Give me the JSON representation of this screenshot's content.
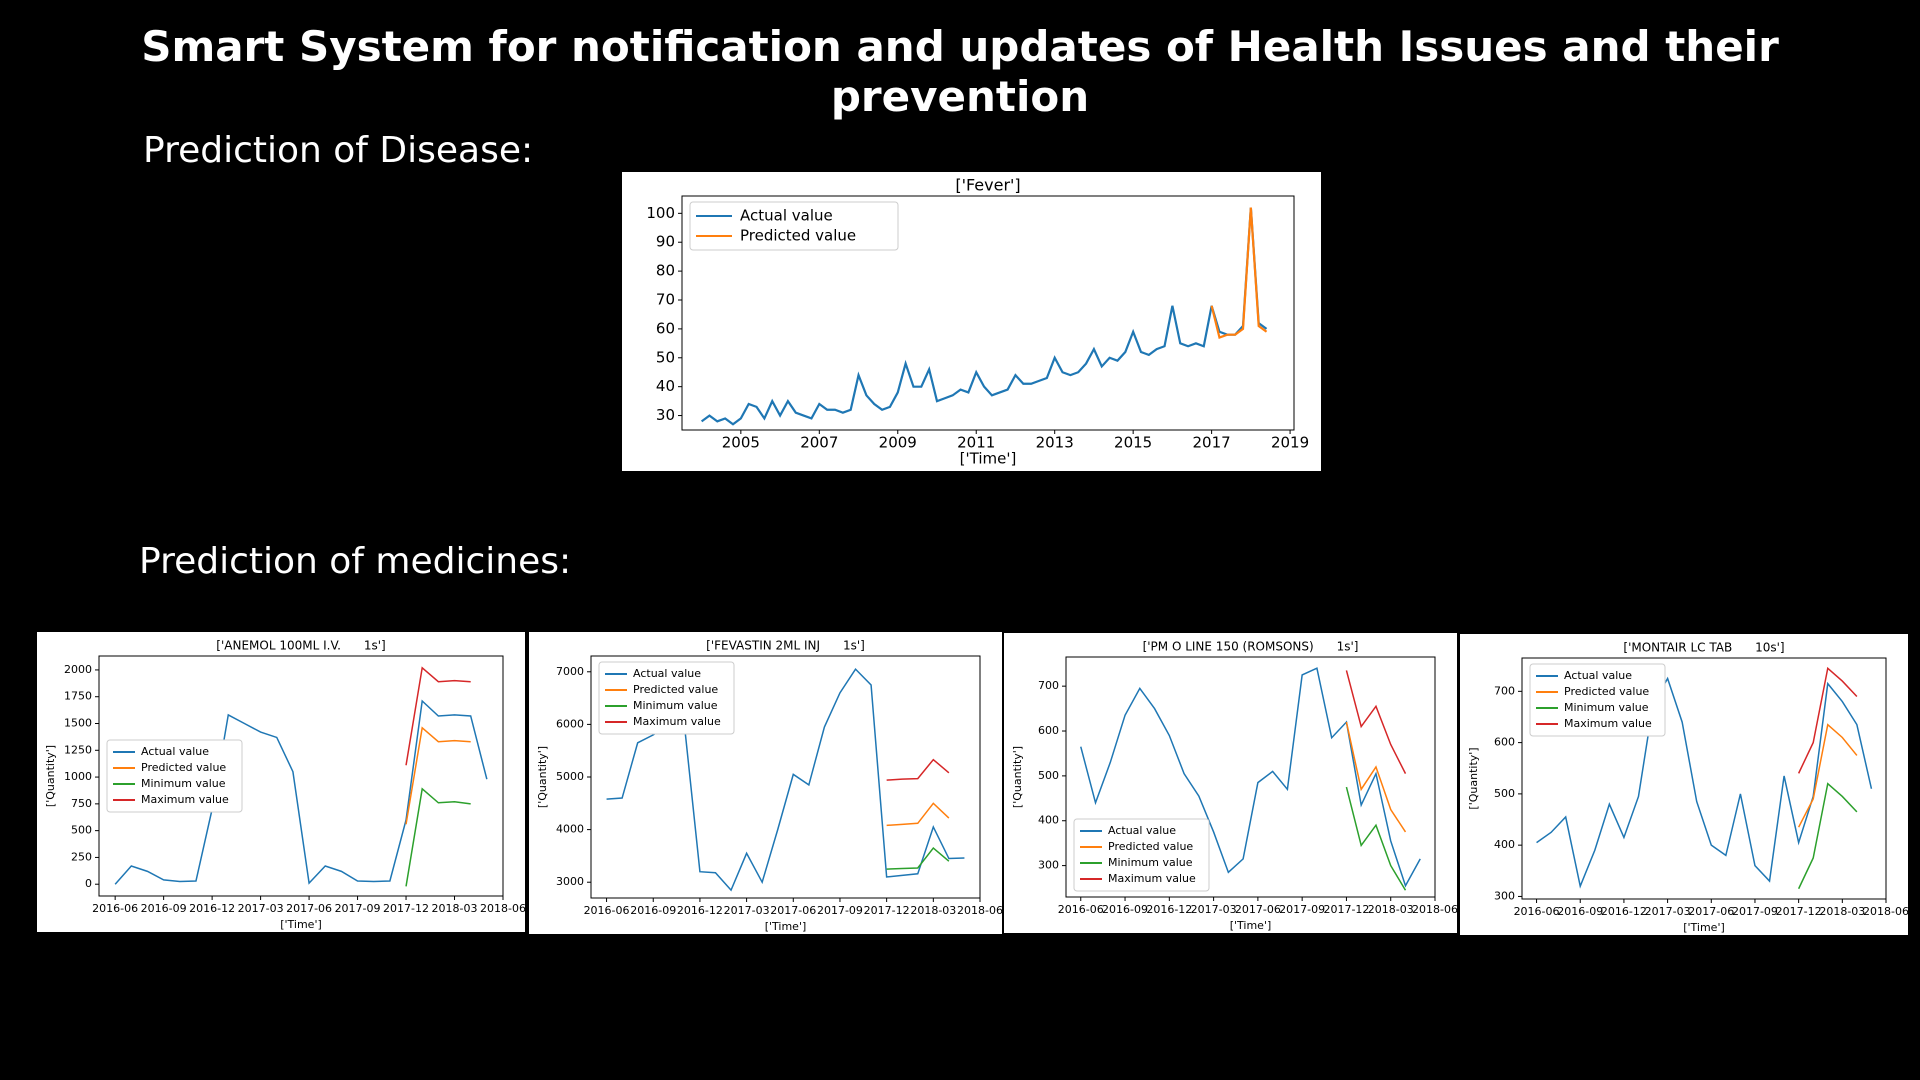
{
  "header": {
    "title": "Smart System for notification and updates of Health Issues and their prevention"
  },
  "sections": [
    {
      "label": "Prediction of Disease:"
    },
    {
      "label": "Prediction of medicines:"
    }
  ],
  "chart_data": [
    {
      "type": "line",
      "title": "['Fever']",
      "x_label": "['Time']",
      "legend": "upper left",
      "x": [
        2004.0,
        2004.2,
        2004.4,
        2004.6,
        2004.8,
        2005.0,
        2005.2,
        2005.4,
        2005.6,
        2005.8,
        2006.0,
        2006.2,
        2006.4,
        2006.6,
        2006.8,
        2007.0,
        2007.2,
        2007.4,
        2007.6,
        2007.8,
        2008.0,
        2008.2,
        2008.4,
        2008.6,
        2008.8,
        2009.0,
        2009.2,
        2009.4,
        2009.6,
        2009.8,
        2010.0,
        2010.2,
        2010.4,
        2010.6,
        2010.8,
        2011.0,
        2011.2,
        2011.4,
        2011.6,
        2011.8,
        2012.0,
        2012.2,
        2012.4,
        2012.6,
        2012.8,
        2013.0,
        2013.2,
        2013.4,
        2013.6,
        2013.8,
        2014.0,
        2014.2,
        2014.4,
        2014.6,
        2014.8,
        2015.0,
        2015.2,
        2015.4,
        2015.6,
        2015.8,
        2016.0,
        2016.2,
        2016.4,
        2016.6,
        2016.8,
        2017.0,
        2017.2,
        2017.4,
        2017.6,
        2017.8,
        2018.0,
        2018.2,
        2018.4
      ],
      "series": [
        {
          "name": "Actual value",
          "color": "#1f77b4",
          "values": [
            28,
            30,
            28,
            29,
            27,
            29,
            34,
            33,
            29,
            35,
            30,
            35,
            31,
            30,
            29,
            34,
            32,
            32,
            31,
            32,
            44,
            37,
            34,
            32,
            33,
            38,
            48,
            40,
            40,
            46,
            35,
            36,
            37,
            39,
            38,
            45,
            40,
            37,
            38,
            39,
            44,
            41,
            41,
            42,
            43,
            50,
            45,
            44,
            45,
            48,
            53,
            47,
            50,
            49,
            52,
            59,
            52,
            51,
            53,
            54,
            68,
            55,
            54,
            55,
            54,
            68,
            59,
            58,
            58,
            61,
            102,
            62,
            60
          ]
        },
        {
          "name": "Predicted value",
          "color": "#ff7f0e",
          "values": [
            null,
            null,
            null,
            null,
            null,
            null,
            null,
            null,
            null,
            null,
            null,
            null,
            null,
            null,
            null,
            null,
            null,
            null,
            null,
            null,
            null,
            null,
            null,
            null,
            null,
            null,
            null,
            null,
            null,
            null,
            null,
            null,
            null,
            null,
            null,
            null,
            null,
            null,
            null,
            null,
            null,
            null,
            null,
            null,
            null,
            null,
            null,
            null,
            null,
            null,
            null,
            null,
            null,
            null,
            null,
            null,
            null,
            null,
            null,
            null,
            null,
            null,
            null,
            null,
            null,
            68,
            57,
            58,
            58,
            60,
            102,
            61,
            59
          ]
        }
      ],
      "xlim": [
        2003.5,
        2019.1
      ],
      "xticks": [
        2005,
        2007,
        2009,
        2011,
        2013,
        2015,
        2017,
        2019
      ],
      "ylim": [
        25,
        106
      ],
      "yticks": [
        30,
        40,
        50,
        60,
        70,
        80,
        90,
        100
      ]
    },
    {
      "type": "line",
      "title": "['ANEMOL 100ML I.V.      1s']",
      "x_label": "['Time']",
      "y_label": "['Quantity']",
      "legend": "center left",
      "x": [
        "2016-06",
        "2016-07",
        "2016-08",
        "2016-09",
        "2016-10",
        "2016-11",
        "2016-12",
        "2017-01",
        "2017-02",
        "2017-03",
        "2017-04",
        "2017-05",
        "2017-06",
        "2017-07",
        "2017-08",
        "2017-09",
        "2017-10",
        "2017-11",
        "2017-12",
        "2018-01",
        "2018-02",
        "2018-03",
        "2018-04",
        "2018-05"
      ],
      "series": [
        {
          "name": "Actual value",
          "color": "#1f77b4",
          "values": [
            0,
            170,
            120,
            40,
            25,
            30,
            700,
            1580,
            1500,
            1420,
            1370,
            1050,
            10,
            170,
            120,
            30,
            25,
            30,
            600,
            1710,
            1570,
            1580,
            1570,
            980
          ]
        },
        {
          "name": "Predicted value",
          "color": "#ff7f0e",
          "values": [
            null,
            null,
            null,
            null,
            null,
            null,
            null,
            null,
            null,
            null,
            null,
            null,
            null,
            null,
            null,
            null,
            null,
            null,
            560,
            1460,
            1330,
            1340,
            1330,
            null
          ]
        },
        {
          "name": "Minimum value",
          "color": "#2ca02c",
          "values": [
            null,
            null,
            null,
            null,
            null,
            null,
            null,
            null,
            null,
            null,
            null,
            null,
            null,
            null,
            null,
            null,
            null,
            null,
            -20,
            890,
            760,
            770,
            750,
            null
          ]
        },
        {
          "name": "Maximum value",
          "color": "#d62728",
          "values": [
            null,
            null,
            null,
            null,
            null,
            null,
            null,
            null,
            null,
            null,
            null,
            null,
            null,
            null,
            null,
            null,
            null,
            null,
            1110,
            2020,
            1890,
            1900,
            1890,
            null
          ]
        }
      ],
      "xlim": [
        "2016-05",
        "2018-06"
      ],
      "xticks": [
        "2016-06",
        "2016-09",
        "2016-12",
        "2017-03",
        "2017-06",
        "2017-09",
        "2017-12",
        "2018-03",
        "2018-06"
      ],
      "ylim": [
        -110,
        2130
      ],
      "yticks": [
        0,
        250,
        500,
        750,
        1000,
        1250,
        1500,
        1750,
        2000
      ]
    },
    {
      "type": "line",
      "title": "['FEVASTIN 2ML INJ      1s']",
      "x_label": "['Time']",
      "y_label": "['Quantity']",
      "legend": "upper left",
      "x": [
        "2016-06",
        "2016-07",
        "2016-08",
        "2016-09",
        "2016-10",
        "2016-11",
        "2016-12",
        "2017-01",
        "2017-02",
        "2017-03",
        "2017-04",
        "2017-05",
        "2017-06",
        "2017-07",
        "2017-08",
        "2017-09",
        "2017-10",
        "2017-11",
        "2017-12",
        "2018-01",
        "2018-02",
        "2018-03",
        "2018-04",
        "2018-05"
      ],
      "series": [
        {
          "name": "Actual value",
          "color": "#1f77b4",
          "values": [
            4580,
            4600,
            5650,
            5800,
            6000,
            6000,
            3200,
            3180,
            2850,
            3550,
            3000,
            4000,
            5050,
            4850,
            5950,
            6600,
            7050,
            6750,
            3100,
            3130,
            3160,
            4050,
            3450,
            3460
          ]
        },
        {
          "name": "Predicted value",
          "color": "#ff7f0e",
          "values": [
            null,
            null,
            null,
            null,
            null,
            null,
            null,
            null,
            null,
            null,
            null,
            null,
            null,
            null,
            null,
            null,
            null,
            null,
            4080,
            4100,
            4120,
            4500,
            4220,
            null
          ]
        },
        {
          "name": "Minimum value",
          "color": "#2ca02c",
          "values": [
            null,
            null,
            null,
            null,
            null,
            null,
            null,
            null,
            null,
            null,
            null,
            null,
            null,
            null,
            null,
            null,
            null,
            null,
            3250,
            3260,
            3270,
            3650,
            3400,
            null
          ]
        },
        {
          "name": "Maximum value",
          "color": "#d62728",
          "values": [
            null,
            null,
            null,
            null,
            null,
            null,
            null,
            null,
            null,
            null,
            null,
            null,
            null,
            null,
            null,
            null,
            null,
            null,
            4940,
            4960,
            4970,
            5330,
            5080,
            null
          ]
        }
      ],
      "xlim": [
        "2016-05",
        "2018-06"
      ],
      "xticks": [
        "2016-06",
        "2016-09",
        "2016-12",
        "2017-03",
        "2017-06",
        "2017-09",
        "2017-12",
        "2018-03",
        "2018-06"
      ],
      "ylim": [
        2700,
        7300
      ],
      "yticks": [
        3000,
        4000,
        5000,
        6000,
        7000
      ]
    },
    {
      "type": "line",
      "title": "['PM O LINE 150 (ROMSONS)      1s']",
      "x_label": "['Time']",
      "y_label": "['Quantity']",
      "legend": "lower left",
      "x": [
        "2016-06",
        "2016-07",
        "2016-08",
        "2016-09",
        "2016-10",
        "2016-11",
        "2016-12",
        "2017-01",
        "2017-02",
        "2017-03",
        "2017-04",
        "2017-05",
        "2017-06",
        "2017-07",
        "2017-08",
        "2017-09",
        "2017-10",
        "2017-11",
        "2017-12",
        "2018-01",
        "2018-02",
        "2018-03",
        "2018-04",
        "2018-05"
      ],
      "series": [
        {
          "name": "Actual value",
          "color": "#1f77b4",
          "values": [
            565,
            440,
            530,
            635,
            695,
            650,
            590,
            505,
            455,
            375,
            285,
            315,
            485,
            510,
            470,
            725,
            740,
            585,
            620,
            435,
            505,
            355,
            255,
            315
          ]
        },
        {
          "name": "Predicted value",
          "color": "#ff7f0e",
          "values": [
            null,
            null,
            null,
            null,
            null,
            null,
            null,
            null,
            null,
            null,
            null,
            null,
            null,
            null,
            null,
            null,
            null,
            null,
            620,
            470,
            520,
            425,
            375,
            null
          ]
        },
        {
          "name": "Minimum value",
          "color": "#2ca02c",
          "values": [
            null,
            null,
            null,
            null,
            null,
            null,
            null,
            null,
            null,
            null,
            null,
            null,
            null,
            null,
            null,
            null,
            null,
            null,
            475,
            345,
            390,
            300,
            245,
            null
          ]
        },
        {
          "name": "Maximum value",
          "color": "#d62728",
          "values": [
            null,
            null,
            null,
            null,
            null,
            null,
            null,
            null,
            null,
            null,
            null,
            null,
            null,
            null,
            null,
            null,
            null,
            null,
            735,
            610,
            655,
            570,
            505,
            null
          ]
        }
      ],
      "xlim": [
        "2016-05",
        "2018-06"
      ],
      "xticks": [
        "2016-06",
        "2016-09",
        "2016-12",
        "2017-03",
        "2017-06",
        "2017-09",
        "2017-12",
        "2018-03",
        "2018-06"
      ],
      "ylim": [
        230,
        765
      ],
      "yticks": [
        300,
        400,
        500,
        600,
        700
      ]
    },
    {
      "type": "line",
      "title": "['MONTAIR LC TAB      10s']",
      "x_label": "['Time']",
      "y_label": "['Quantity']",
      "legend": "upper left",
      "x": [
        "2016-06",
        "2016-07",
        "2016-08",
        "2016-09",
        "2016-10",
        "2016-11",
        "2016-12",
        "2017-01",
        "2017-02",
        "2017-03",
        "2017-04",
        "2017-05",
        "2017-06",
        "2017-07",
        "2017-08",
        "2017-09",
        "2017-10",
        "2017-11",
        "2017-12",
        "2018-01",
        "2018-02",
        "2018-03",
        "2018-04",
        "2018-05"
      ],
      "series": [
        {
          "name": "Actual value",
          "color": "#1f77b4",
          "values": [
            405,
            425,
            455,
            320,
            390,
            480,
            415,
            495,
            675,
            725,
            640,
            485,
            400,
            380,
            500,
            360,
            330,
            535,
            405,
            495,
            715,
            680,
            635,
            510
          ]
        },
        {
          "name": "Predicted value",
          "color": "#ff7f0e",
          "values": [
            null,
            null,
            null,
            null,
            null,
            null,
            null,
            null,
            null,
            null,
            null,
            null,
            null,
            null,
            null,
            null,
            null,
            null,
            435,
            490,
            635,
            610,
            575,
            null
          ]
        },
        {
          "name": "Minimum value",
          "color": "#2ca02c",
          "values": [
            null,
            null,
            null,
            null,
            null,
            null,
            null,
            null,
            null,
            null,
            null,
            null,
            null,
            null,
            null,
            null,
            null,
            null,
            315,
            375,
            520,
            495,
            465,
            null
          ]
        },
        {
          "name": "Maximum value",
          "color": "#d62728",
          "values": [
            null,
            null,
            null,
            null,
            null,
            null,
            null,
            null,
            null,
            null,
            null,
            null,
            null,
            null,
            null,
            null,
            null,
            null,
            540,
            600,
            745,
            720,
            690,
            null
          ]
        }
      ],
      "xlim": [
        "2016-05",
        "2018-06"
      ],
      "xticks": [
        "2016-06",
        "2016-09",
        "2016-12",
        "2017-03",
        "2017-06",
        "2017-09",
        "2017-12",
        "2018-03",
        "2018-06"
      ],
      "ylim": [
        295,
        765
      ],
      "yticks": [
        300,
        400,
        500,
        600,
        700
      ]
    }
  ]
}
